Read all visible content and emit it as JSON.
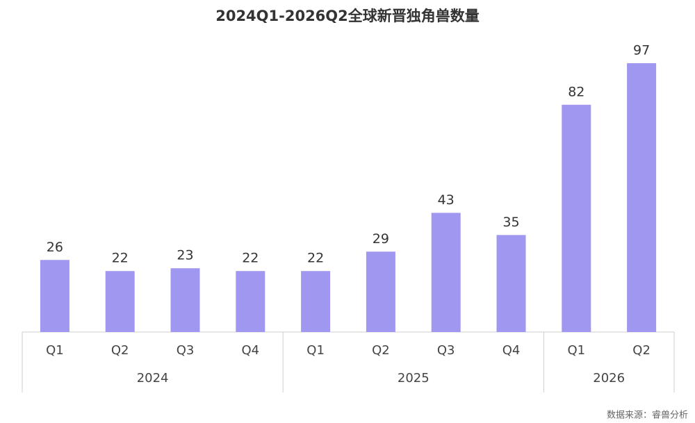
{
  "chart_data": {
    "type": "bar",
    "title": "2024Q1-2026Q2全球新晋独角兽数量",
    "groups": [
      {
        "label": "2024",
        "categories": [
          "Q1",
          "Q2",
          "Q3",
          "Q4"
        ]
      },
      {
        "label": "2025",
        "categories": [
          "Q1",
          "Q2",
          "Q3",
          "Q4"
        ]
      },
      {
        "label": "2026",
        "categories": [
          "Q1",
          "Q2"
        ]
      }
    ],
    "values": [
      26,
      22,
      23,
      22,
      22,
      29,
      43,
      35,
      82,
      97
    ],
    "color": "#a097f1",
    "ylim": [
      0,
      100
    ],
    "source": "数据来源：睿兽分析"
  }
}
